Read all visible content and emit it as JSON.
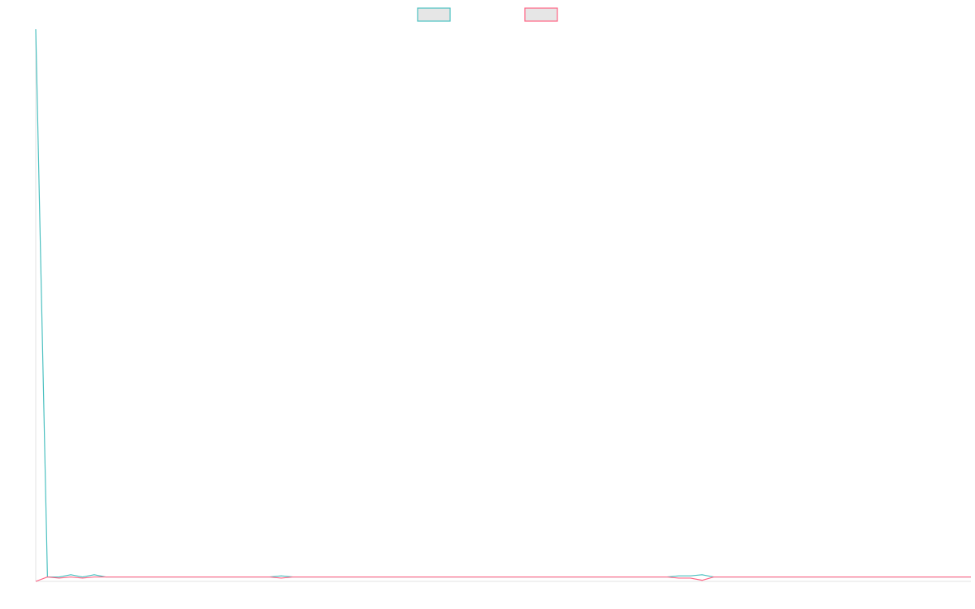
{
  "chart_data": {
    "type": "line",
    "title": "",
    "xlabel": "",
    "ylabel": "",
    "grid": false,
    "legend_placement": "top-center",
    "x": [
      0,
      1,
      2,
      3,
      4,
      5,
      6,
      7,
      8,
      9,
      10,
      11,
      12,
      13,
      14,
      15,
      16,
      17,
      18,
      19,
      20,
      21,
      22,
      23,
      24,
      25,
      26,
      27,
      28,
      29,
      30,
      31,
      32,
      33,
      34,
      35,
      36,
      37,
      38,
      39,
      40,
      41,
      42,
      43,
      44,
      45,
      46,
      47,
      48,
      49,
      50,
      51,
      52,
      53,
      54,
      55,
      56,
      57,
      58,
      59,
      60,
      61,
      62,
      63,
      64,
      65,
      66,
      67,
      68,
      69,
      70,
      71,
      72,
      73,
      74,
      75,
      76,
      77,
      78,
      79,
      80
    ],
    "xlim": [
      0,
      80
    ],
    "ylim": [
      0,
      100
    ],
    "series": [
      {
        "name": "",
        "color": "#4bc0c0",
        "values": [
          100,
          0.8,
          0.8,
          1.2,
          0.8,
          1.2,
          0.8,
          0.8,
          0.8,
          0.8,
          0.8,
          0.8,
          0.8,
          0.8,
          0.8,
          0.8,
          0.8,
          0.8,
          0.8,
          0.8,
          0.8,
          1.0,
          0.8,
          0.8,
          0.8,
          0.8,
          0.8,
          0.8,
          0.8,
          0.8,
          0.8,
          0.8,
          0.8,
          0.8,
          0.8,
          0.8,
          0.8,
          0.8,
          0.8,
          0.8,
          0.8,
          0.8,
          0.8,
          0.8,
          0.8,
          0.8,
          0.8,
          0.8,
          0.8,
          0.8,
          0.8,
          0.8,
          0.8,
          0.8,
          0.8,
          1.0,
          1.0,
          1.2,
          0.8,
          0.8,
          0.8,
          0.8,
          0.8,
          0.8,
          0.8,
          0.8,
          0.8,
          0.8,
          0.8,
          0.8,
          0.8,
          0.8,
          0.8,
          0.8,
          0.8,
          0.8,
          0.8,
          0.8,
          0.8,
          0.8,
          0.8
        ]
      },
      {
        "name": "",
        "color": "#ff6384",
        "values": [
          0,
          0.8,
          0.6,
          0.8,
          0.6,
          0.8,
          0.8,
          0.8,
          0.8,
          0.8,
          0.8,
          0.8,
          0.8,
          0.8,
          0.8,
          0.8,
          0.8,
          0.8,
          0.8,
          0.8,
          0.8,
          0.6,
          0.8,
          0.8,
          0.8,
          0.8,
          0.8,
          0.8,
          0.8,
          0.8,
          0.8,
          0.8,
          0.8,
          0.8,
          0.8,
          0.8,
          0.8,
          0.8,
          0.8,
          0.8,
          0.8,
          0.8,
          0.8,
          0.8,
          0.8,
          0.8,
          0.8,
          0.8,
          0.8,
          0.8,
          0.8,
          0.8,
          0.8,
          0.8,
          0.8,
          0.6,
          0.6,
          0.2,
          0.8,
          0.8,
          0.8,
          0.8,
          0.8,
          0.8,
          0.8,
          0.8,
          0.8,
          0.8,
          0.8,
          0.8,
          0.8,
          0.8,
          0.8,
          0.8,
          0.8,
          0.8,
          0.8,
          0.8,
          0.8,
          0.8,
          0.8
        ]
      }
    ]
  }
}
